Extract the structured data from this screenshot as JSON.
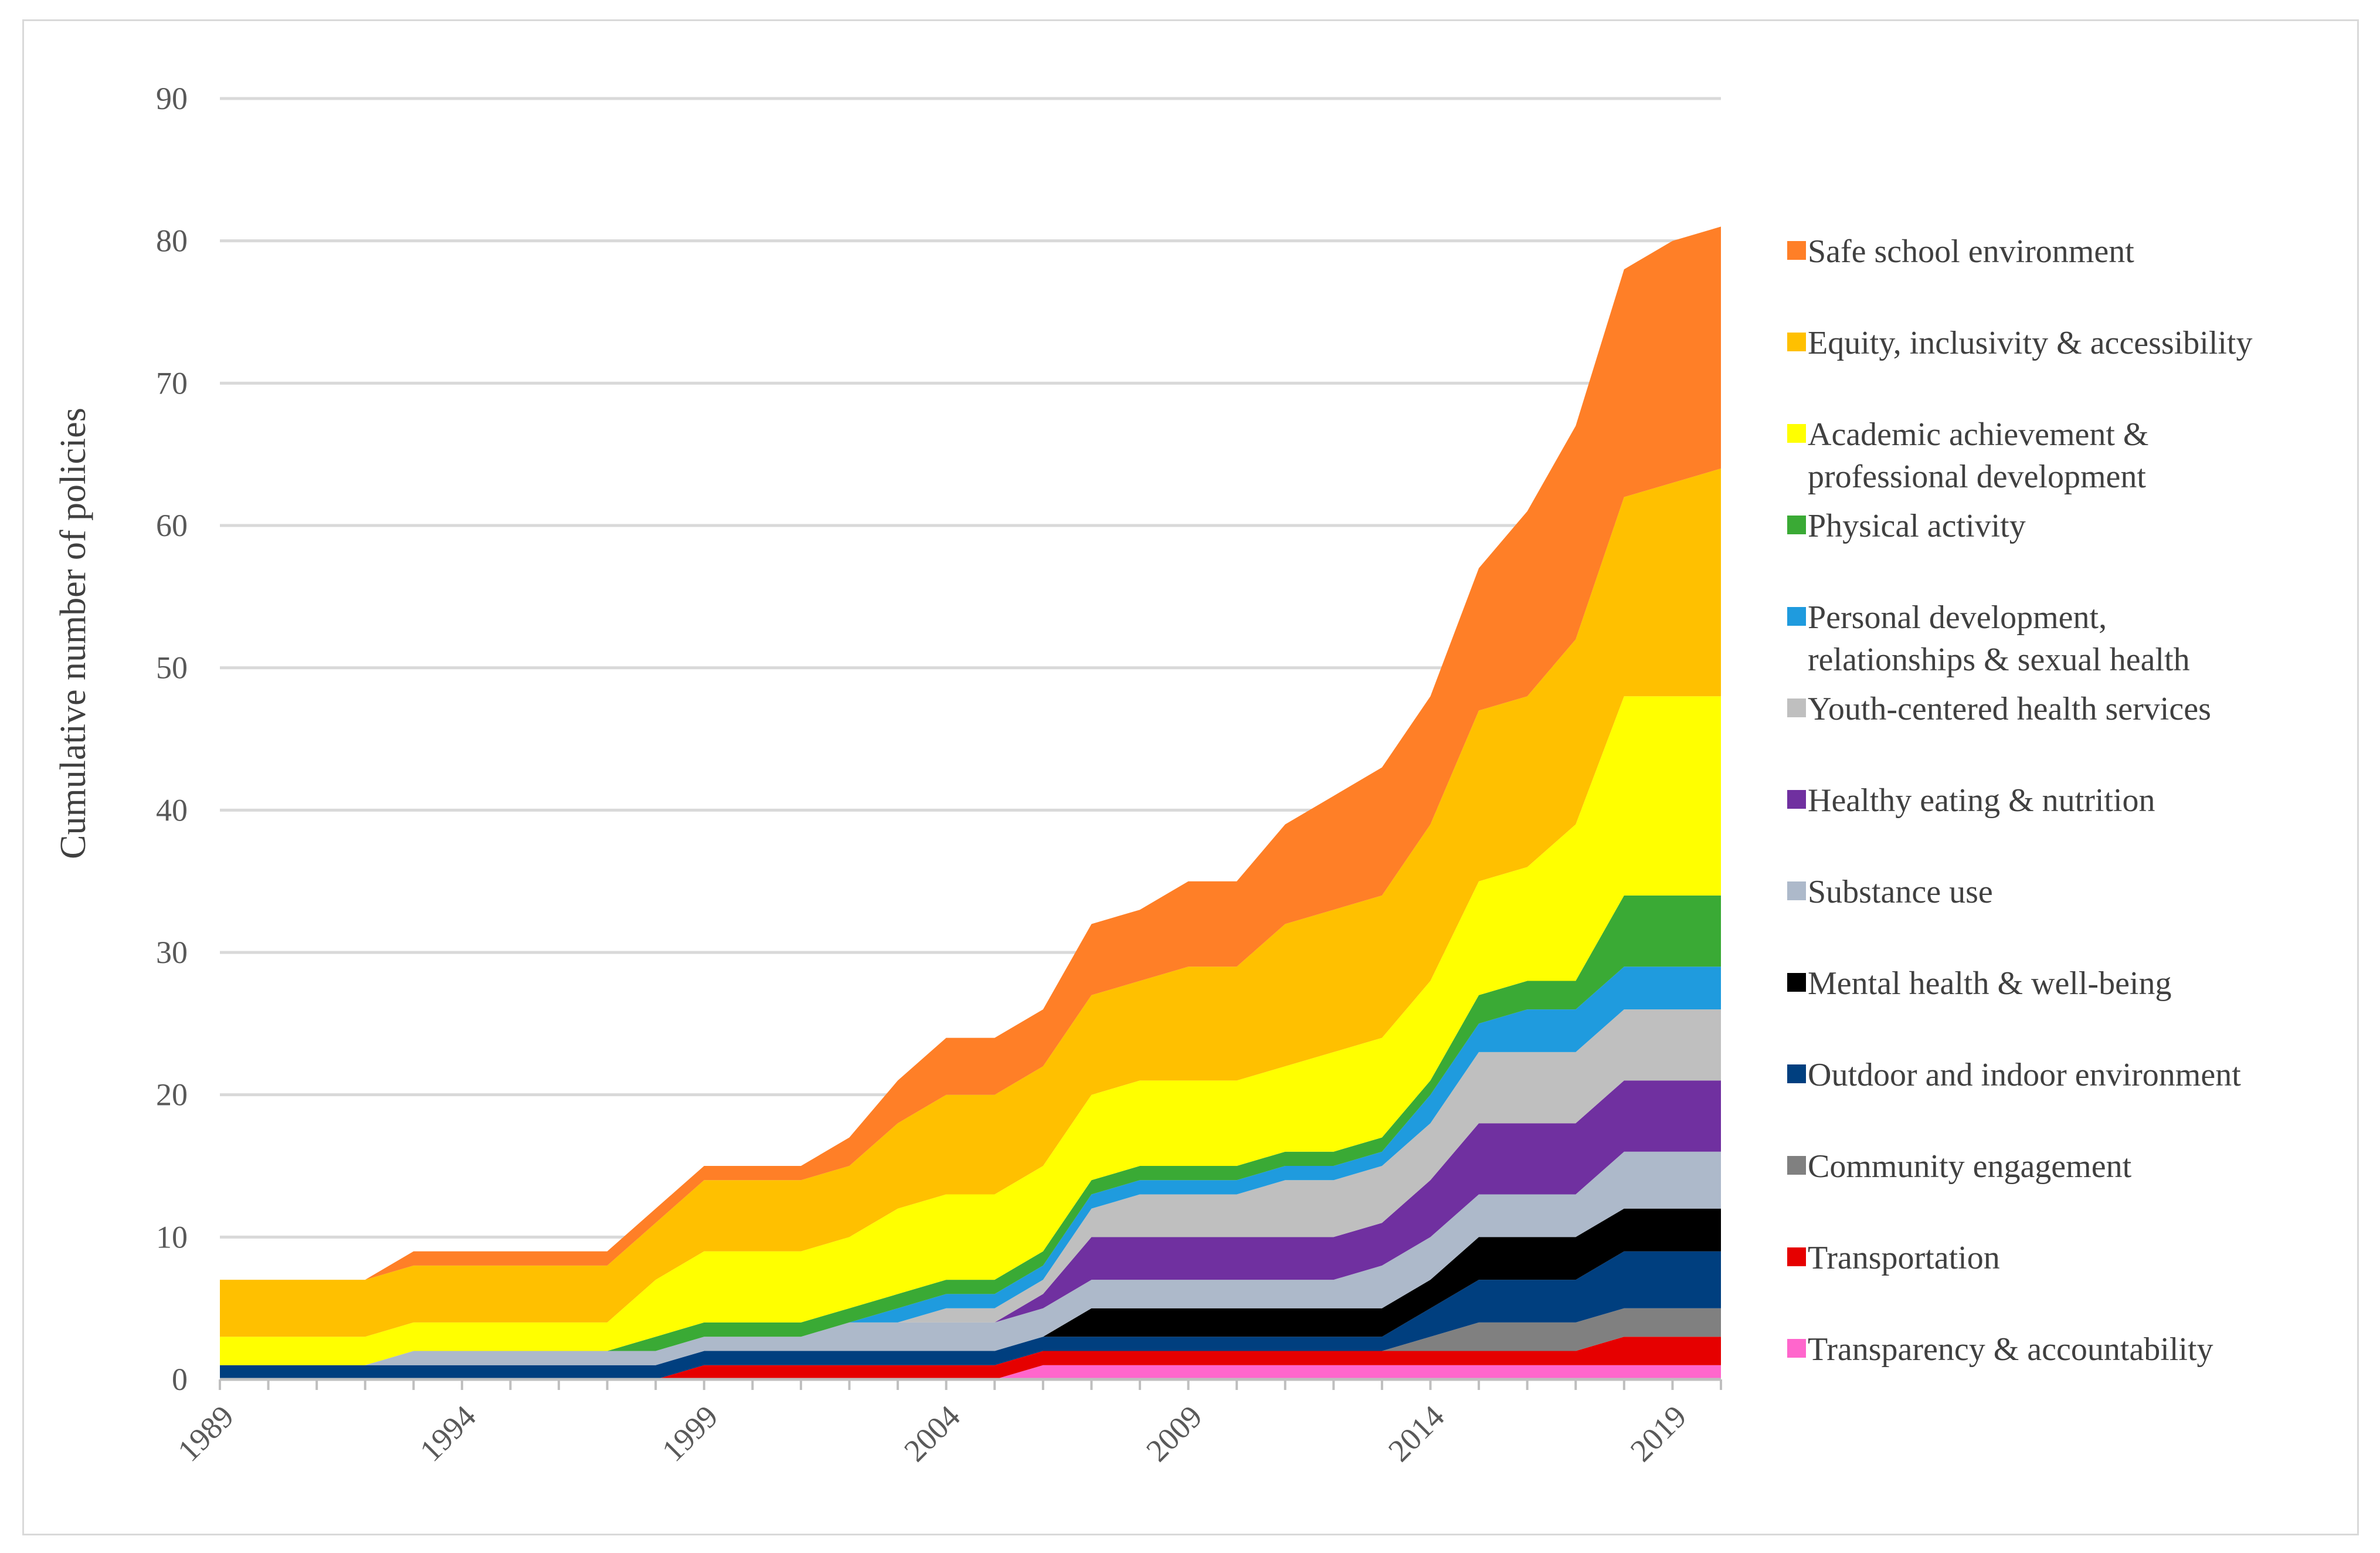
{
  "chart_data": {
    "type": "area",
    "stacked": true,
    "ylabel": "Cumulative number of policies",
    "xlabel": "",
    "ylim": [
      0,
      90
    ],
    "yticks": [
      0,
      10,
      20,
      30,
      40,
      50,
      60,
      70,
      80,
      90
    ],
    "xlim": [
      1989,
      2020
    ],
    "xticks": [
      1989,
      1994,
      1999,
      2004,
      2009,
      2014,
      2019
    ],
    "grid": true,
    "legend": "right",
    "x": [
      1989,
      1990,
      1991,
      1992,
      1993,
      1994,
      1995,
      1996,
      1997,
      1998,
      1999,
      2000,
      2001,
      2002,
      2003,
      2004,
      2005,
      2006,
      2007,
      2008,
      2009,
      2010,
      2011,
      2012,
      2013,
      2014,
      2015,
      2016,
      2017,
      2018,
      2019,
      2020
    ],
    "series": [
      {
        "name": "Transparency & accountability",
        "color": "#ff66cc",
        "values": [
          0,
          0,
          0,
          0,
          0,
          0,
          0,
          0,
          0,
          0,
          0,
          0,
          0,
          0,
          0,
          0,
          0,
          1,
          1,
          1,
          1,
          1,
          1,
          1,
          1,
          1,
          1,
          1,
          1,
          1,
          1,
          1
        ]
      },
      {
        "name": "Transportation",
        "color": "#e60000",
        "values": [
          0,
          0,
          0,
          0,
          0,
          0,
          0,
          0,
          0,
          0,
          1,
          1,
          1,
          1,
          1,
          1,
          1,
          1,
          1,
          1,
          1,
          1,
          1,
          1,
          1,
          1,
          1,
          1,
          1,
          2,
          2,
          2
        ]
      },
      {
        "name": "Community engagement",
        "color": "#808080",
        "values": [
          0,
          0,
          0,
          0,
          0,
          0,
          0,
          0,
          0,
          0,
          0,
          0,
          0,
          0,
          0,
          0,
          0,
          0,
          0,
          0,
          0,
          0,
          0,
          0,
          0,
          1,
          2,
          2,
          2,
          2,
          2,
          2
        ]
      },
      {
        "name": "Outdoor and indoor environment",
        "color": "#003f7f",
        "values": [
          1,
          1,
          1,
          1,
          1,
          1,
          1,
          1,
          1,
          1,
          1,
          1,
          1,
          1,
          1,
          1,
          1,
          1,
          1,
          1,
          1,
          1,
          1,
          1,
          1,
          2,
          3,
          3,
          3,
          4,
          4,
          4
        ]
      },
      {
        "name": "Mental health & well-being",
        "color": "#000000",
        "values": [
          0,
          0,
          0,
          0,
          0,
          0,
          0,
          0,
          0,
          0,
          0,
          0,
          0,
          0,
          0,
          0,
          0,
          0,
          2,
          2,
          2,
          2,
          2,
          2,
          2,
          2,
          3,
          3,
          3,
          3,
          3,
          3
        ]
      },
      {
        "name": "Substance use",
        "color": "#adb9ca",
        "values": [
          0,
          0,
          0,
          0,
          1,
          1,
          1,
          1,
          1,
          1,
          1,
          1,
          1,
          2,
          2,
          2,
          2,
          2,
          2,
          2,
          2,
          2,
          2,
          2,
          3,
          3,
          3,
          3,
          3,
          4,
          4,
          4
        ]
      },
      {
        "name": "Healthy eating & nutrition",
        "color": "#7030a0",
        "values": [
          0,
          0,
          0,
          0,
          0,
          0,
          0,
          0,
          0,
          0,
          0,
          0,
          0,
          0,
          0,
          0,
          0,
          1,
          3,
          3,
          3,
          3,
          3,
          3,
          3,
          4,
          5,
          5,
          5,
          5,
          5,
          5
        ]
      },
      {
        "name": "Youth-centered health services",
        "color": "#bfbfbf",
        "values": [
          0,
          0,
          0,
          0,
          0,
          0,
          0,
          0,
          0,
          0,
          0,
          0,
          0,
          0,
          0,
          1,
          1,
          1,
          2,
          3,
          3,
          3,
          4,
          4,
          4,
          4,
          5,
          5,
          5,
          5,
          5,
          5
        ]
      },
      {
        "name": "Personal development, relationships & sexual health",
        "color": "#1f9bde",
        "values": [
          0,
          0,
          0,
          0,
          0,
          0,
          0,
          0,
          0,
          0,
          0,
          0,
          0,
          0,
          1,
          1,
          1,
          1,
          1,
          1,
          1,
          1,
          1,
          1,
          1,
          2,
          2,
          3,
          3,
          3,
          3,
          3
        ]
      },
      {
        "name": "Physical activity",
        "color": "#3aaa35",
        "values": [
          0,
          0,
          0,
          0,
          0,
          0,
          0,
          0,
          0,
          1,
          1,
          1,
          1,
          1,
          1,
          1,
          1,
          1,
          1,
          1,
          1,
          1,
          1,
          1,
          1,
          1,
          2,
          2,
          2,
          5,
          5,
          5
        ]
      },
      {
        "name": "Academic achievement & professional development",
        "color": "#ffff00",
        "values": [
          2,
          2,
          2,
          2,
          2,
          2,
          2,
          2,
          2,
          4,
          5,
          5,
          5,
          5,
          6,
          6,
          6,
          6,
          6,
          6,
          6,
          6,
          6,
          7,
          7,
          7,
          8,
          8,
          11,
          14,
          14,
          14
        ]
      },
      {
        "name": "Equity, inclusivity & accessibility",
        "color": "#ffc000",
        "values": [
          4,
          4,
          4,
          4,
          4,
          4,
          4,
          4,
          4,
          4,
          5,
          5,
          5,
          5,
          6,
          7,
          7,
          7,
          7,
          7,
          8,
          8,
          10,
          10,
          10,
          11,
          12,
          12,
          13,
          14,
          15,
          16
        ]
      },
      {
        "name": "Safe school environment",
        "color": "#ff7f27",
        "values": [
          0,
          0,
          0,
          0,
          1,
          1,
          1,
          1,
          1,
          1,
          1,
          1,
          1,
          2,
          3,
          4,
          4,
          4,
          5,
          5,
          6,
          6,
          7,
          8,
          9,
          9,
          10,
          13,
          15,
          16,
          17,
          17
        ]
      }
    ],
    "legend_order": [
      "Safe school environment",
      "Equity, inclusivity & accessibility",
      "Academic achievement & professional development",
      "Physical activity",
      "Personal development, relationships & sexual health",
      "Youth-centered health services",
      "Healthy eating & nutrition",
      "Substance use",
      "Mental health & well-being",
      "Outdoor and indoor environment",
      "Community engagement",
      "Transportation",
      "Transparency & accountability"
    ],
    "legend_lines": {
      "Safe school environment": [
        "Safe school environment"
      ],
      "Equity, inclusivity & accessibility": [
        "Equity, inclusivity & accessibility"
      ],
      "Academic achievement & professional development": [
        "Academic achievement &",
        "professional development"
      ],
      "Physical activity": [
        "Physical activity"
      ],
      "Personal development, relationships & sexual health": [
        "Personal development,",
        "relationships & sexual health"
      ],
      "Youth-centered health services": [
        "Youth-centered health services"
      ],
      "Healthy eating & nutrition": [
        "Healthy eating & nutrition"
      ],
      "Substance use": [
        "Substance use"
      ],
      "Mental health & well-being": [
        "Mental health & well-being"
      ],
      "Outdoor and indoor environment": [
        "Outdoor and indoor environment"
      ],
      "Community engagement": [
        "Community engagement"
      ],
      "Transportation": [
        "Transportation"
      ],
      "Transparency & accountability": [
        "Transparency & accountability"
      ]
    }
  }
}
